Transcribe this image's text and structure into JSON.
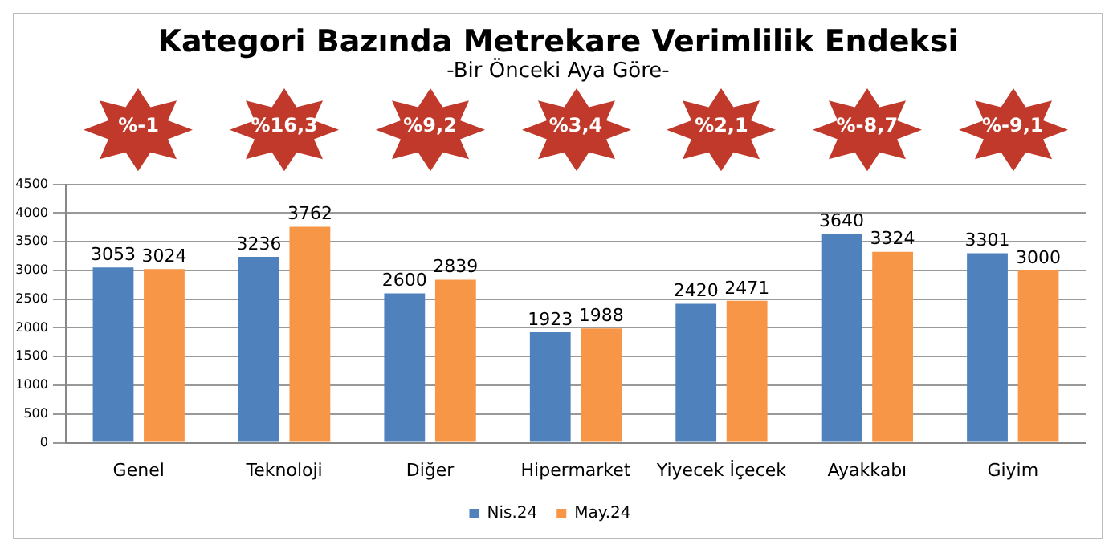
{
  "chart_data": {
    "type": "bar",
    "title": "Kategori Bazında Metrekare Verimlilik Endeksi",
    "subtitle": "-Bir Önceki Aya Göre-",
    "categories": [
      "Genel",
      "Teknoloji",
      "Diğer",
      "Hipermarket",
      "Yiyecek İçecek",
      "Ayakkabı",
      "Giyim"
    ],
    "series": [
      {
        "name": "Nis.24",
        "color": "#4f81bd",
        "values": [
          3053,
          3236,
          2600,
          1923,
          2420,
          3640,
          3301
        ]
      },
      {
        "name": "May.24",
        "color": "#f79646",
        "values": [
          3024,
          3762,
          2839,
          1988,
          2471,
          3324,
          3000
        ]
      }
    ],
    "annotations": [
      "%-1",
      "%16,3",
      "%9,2",
      "%3,4",
      "%2,1",
      "%-8,7",
      "%-9,1"
    ],
    "ylim": [
      0,
      4500
    ],
    "yticks": [
      0,
      500,
      1000,
      1500,
      2000,
      2500,
      3000,
      3500,
      4000,
      4500
    ],
    "grid": "y",
    "legend": "bottom",
    "data_labels": true
  }
}
